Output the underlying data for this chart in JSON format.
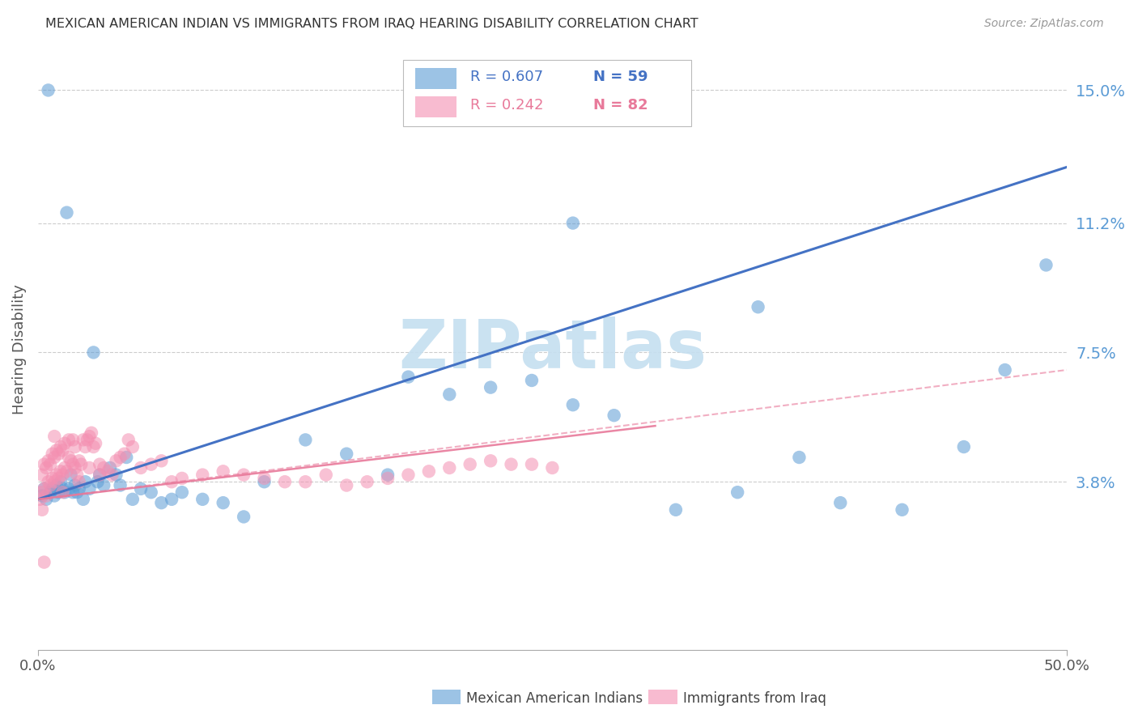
{
  "title": "MEXICAN AMERICAN INDIAN VS IMMIGRANTS FROM IRAQ HEARING DISABILITY CORRELATION CHART",
  "source": "Source: ZipAtlas.com",
  "ylabel": "Hearing Disability",
  "xlim": [
    0.0,
    0.5
  ],
  "ylim": [
    -0.01,
    0.162
  ],
  "ytick_values": [
    0.038,
    0.075,
    0.112,
    0.15
  ],
  "ytick_labels": [
    "3.8%",
    "7.5%",
    "11.2%",
    "15.0%"
  ],
  "blue_name": "Mexican American Indians",
  "pink_name": "Immigrants from Iraq",
  "blue_R": 0.607,
  "blue_N": 59,
  "pink_R": 0.242,
  "pink_N": 82,
  "blue_color": "#5b9bd5",
  "pink_color": "#f48fb1",
  "blue_line_color": "#4472c4",
  "pink_line_color": "#e8799a",
  "trend_blue_start_y": 0.033,
  "trend_blue_end_y": 0.128,
  "trend_pink_solid_start_y": 0.033,
  "trend_pink_solid_end_y": 0.054,
  "trend_pink_solid_end_x": 0.3,
  "trend_pink_dashed_end_y": 0.07,
  "watermark": "ZIPatlas",
  "watermark_color": "#c5dff0",
  "bg_color": "#ffffff",
  "title_color": "#333333",
  "axis_color": "#5b9bd5",
  "grid_color": "#cccccc",
  "legend_R_blue": "R = 0.607",
  "legend_N_blue": "N = 59",
  "legend_R_pink": "R = 0.242",
  "legend_N_pink": "N = 82",
  "blue_scatter_x": [
    0.002,
    0.003,
    0.004,
    0.005,
    0.006,
    0.007,
    0.008,
    0.009,
    0.01,
    0.011,
    0.012,
    0.013,
    0.014,
    0.015,
    0.016,
    0.017,
    0.018,
    0.019,
    0.02,
    0.022,
    0.023,
    0.025,
    0.027,
    0.029,
    0.03,
    0.032,
    0.035,
    0.038,
    0.04,
    0.043,
    0.046,
    0.05,
    0.055,
    0.06,
    0.065,
    0.07,
    0.08,
    0.09,
    0.1,
    0.11,
    0.13,
    0.15,
    0.17,
    0.2,
    0.22,
    0.24,
    0.26,
    0.28,
    0.31,
    0.34,
    0.37,
    0.39,
    0.42,
    0.45,
    0.47,
    0.49,
    0.35,
    0.26,
    0.18
  ],
  "blue_scatter_y": [
    0.034,
    0.036,
    0.033,
    0.15,
    0.035,
    0.036,
    0.034,
    0.037,
    0.035,
    0.038,
    0.036,
    0.035,
    0.115,
    0.036,
    0.04,
    0.035,
    0.037,
    0.035,
    0.036,
    0.033,
    0.038,
    0.036,
    0.075,
    0.038,
    0.04,
    0.037,
    0.042,
    0.04,
    0.037,
    0.045,
    0.033,
    0.036,
    0.035,
    0.032,
    0.033,
    0.035,
    0.033,
    0.032,
    0.028,
    0.038,
    0.05,
    0.046,
    0.04,
    0.063,
    0.065,
    0.067,
    0.06,
    0.057,
    0.03,
    0.035,
    0.045,
    0.032,
    0.03,
    0.048,
    0.07,
    0.1,
    0.088,
    0.112,
    0.068
  ],
  "pink_scatter_x": [
    0.001,
    0.002,
    0.002,
    0.003,
    0.003,
    0.004,
    0.004,
    0.005,
    0.005,
    0.006,
    0.006,
    0.007,
    0.007,
    0.008,
    0.008,
    0.009,
    0.009,
    0.01,
    0.01,
    0.011,
    0.011,
    0.012,
    0.012,
    0.013,
    0.013,
    0.014,
    0.015,
    0.015,
    0.016,
    0.017,
    0.017,
    0.018,
    0.018,
    0.019,
    0.02,
    0.021,
    0.022,
    0.023,
    0.024,
    0.025,
    0.026,
    0.027,
    0.028,
    0.03,
    0.032,
    0.034,
    0.036,
    0.038,
    0.04,
    0.042,
    0.044,
    0.046,
    0.05,
    0.055,
    0.06,
    0.065,
    0.07,
    0.08,
    0.09,
    0.1,
    0.11,
    0.12,
    0.13,
    0.14,
    0.15,
    0.16,
    0.17,
    0.18,
    0.19,
    0.2,
    0.21,
    0.22,
    0.23,
    0.24,
    0.25,
    0.002,
    0.003,
    0.008,
    0.012,
    0.02,
    0.025,
    0.03
  ],
  "pink_scatter_y": [
    0.033,
    0.035,
    0.04,
    0.036,
    0.043,
    0.034,
    0.042,
    0.038,
    0.044,
    0.037,
    0.043,
    0.039,
    0.046,
    0.038,
    0.045,
    0.04,
    0.047,
    0.039,
    0.046,
    0.041,
    0.048,
    0.04,
    0.047,
    0.042,
    0.049,
    0.041,
    0.045,
    0.05,
    0.044,
    0.043,
    0.05,
    0.042,
    0.048,
    0.04,
    0.044,
    0.043,
    0.05,
    0.048,
    0.05,
    0.051,
    0.052,
    0.048,
    0.049,
    0.043,
    0.042,
    0.041,
    0.04,
    0.044,
    0.045,
    0.046,
    0.05,
    0.048,
    0.042,
    0.043,
    0.044,
    0.038,
    0.039,
    0.04,
    0.041,
    0.04,
    0.039,
    0.038,
    0.038,
    0.04,
    0.037,
    0.038,
    0.039,
    0.04,
    0.041,
    0.042,
    0.043,
    0.044,
    0.043,
    0.043,
    0.042,
    0.03,
    0.015,
    0.051,
    0.035,
    0.038,
    0.042,
    0.04
  ]
}
